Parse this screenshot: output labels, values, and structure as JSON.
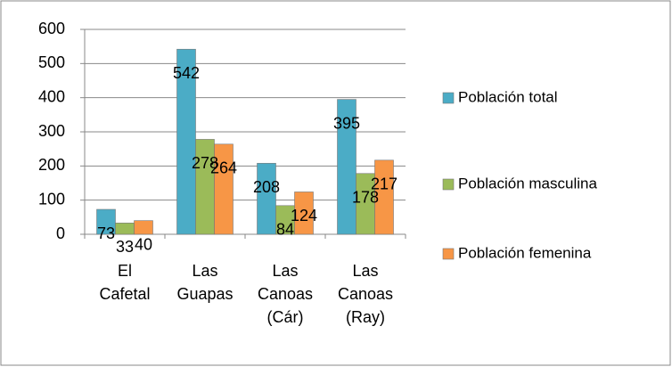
{
  "chart_data": {
    "type": "bar",
    "categories": [
      "El Cafetal",
      "Las Guapas",
      "Las Canoas (Cár)",
      "Las Canoas (Ray)"
    ],
    "series": [
      {
        "name": "Población total",
        "color": "#4bacc6",
        "values": [
          73,
          542,
          208,
          395
        ]
      },
      {
        "name": "Población masculina",
        "color": "#9bbb59",
        "values": [
          33,
          278,
          84,
          178
        ]
      },
      {
        "name": "Población femenina",
        "color": "#f79646",
        "values": [
          40,
          264,
          124,
          217
        ]
      }
    ],
    "ylim": [
      0,
      600
    ],
    "yticks": [
      0,
      100,
      200,
      300,
      400,
      500,
      600
    ],
    "grid": true,
    "legend": "right"
  }
}
